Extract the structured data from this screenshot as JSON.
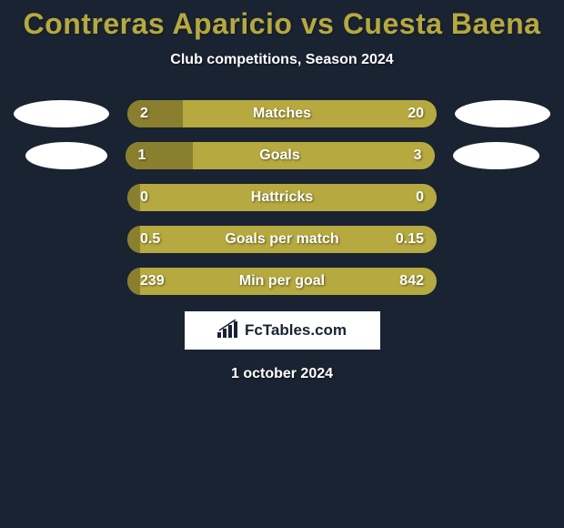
{
  "title": "Contreras Aparicio vs Cuesta Baena",
  "subtitle": "Club competitions, Season 2024",
  "colors": {
    "background": "#1a2332",
    "accent": "#b5a93f",
    "accent_dark": "#8a7f2e",
    "white": "#ffffff"
  },
  "stats": [
    {
      "label": "Matches",
      "left_value": "2",
      "right_value": "20",
      "left_pct": 18,
      "show_badges": true,
      "left_badge_width": 105,
      "right_badge_width": 105
    },
    {
      "label": "Goals",
      "left_value": "1",
      "right_value": "3",
      "left_pct": 22,
      "show_badges": true,
      "left_badge_width": 90,
      "right_badge_width": 95
    },
    {
      "label": "Hattricks",
      "left_value": "0",
      "right_value": "0",
      "left_pct": 4,
      "show_badges": false
    },
    {
      "label": "Goals per match",
      "left_value": "0.5",
      "right_value": "0.15",
      "left_pct": 4,
      "show_badges": false
    },
    {
      "label": "Min per goal",
      "left_value": "239",
      "right_value": "842",
      "left_pct": 4,
      "show_badges": false
    }
  ],
  "logo": {
    "text": "FcTables.com"
  },
  "date": "1 october 2024"
}
